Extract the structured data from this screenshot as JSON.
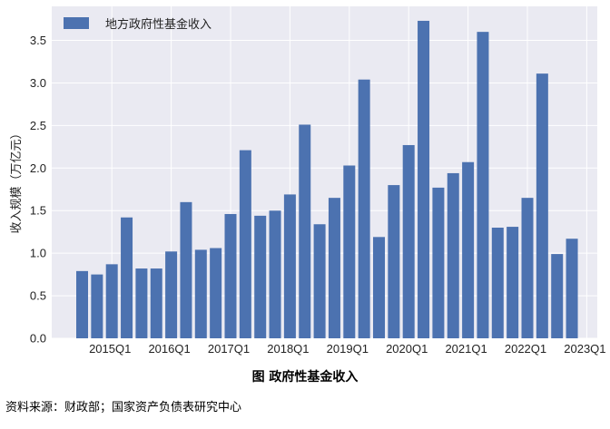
{
  "caption": "图  政府性基金收入",
  "source": "资料来源：财政部；国家资产负债表研究中心",
  "colors": {
    "bar": "#4C72B0",
    "plot_bg": "#EAEAF2",
    "grid": "#ffffff"
  },
  "chart_data": {
    "type": "bar",
    "xlabel": "",
    "ylabel": "收入规模（万亿元）",
    "ylim": [
      0,
      3.9
    ],
    "yticks": [
      "0.0",
      "0.5",
      "1.0",
      "1.5",
      "2.0",
      "2.5",
      "3.0",
      "3.5"
    ],
    "grid": true,
    "legend_position": "top-left",
    "categories": [
      "2015Q1",
      "2015Q2",
      "2015Q3",
      "2015Q4",
      "2016Q1",
      "2016Q2",
      "2016Q3",
      "2016Q4",
      "2017Q1",
      "2017Q2",
      "2017Q3",
      "2017Q4",
      "2018Q1",
      "2018Q2",
      "2018Q3",
      "2018Q4",
      "2019Q1",
      "2019Q2",
      "2019Q3",
      "2019Q4",
      "2020Q1",
      "2020Q2",
      "2020Q3",
      "2020Q4",
      "2021Q1",
      "2021Q2",
      "2021Q3",
      "2021Q4",
      "2022Q1",
      "2022Q2",
      "2022Q3",
      "2022Q4",
      "2023Q1",
      "2023Q2"
    ],
    "xtick_labels": [
      "2015Q1",
      "2016Q1",
      "2017Q1",
      "2018Q1",
      "2019Q1",
      "2020Q1",
      "2021Q1",
      "2022Q1",
      "2023Q1"
    ],
    "series": [
      {
        "name": "地方政府性基金收入",
        "values": [
          0.79,
          0.75,
          0.87,
          1.42,
          0.82,
          0.82,
          1.02,
          1.6,
          1.04,
          1.06,
          1.46,
          2.21,
          1.44,
          1.5,
          1.69,
          2.51,
          1.34,
          1.65,
          2.03,
          3.04,
          1.19,
          1.8,
          2.27,
          3.73,
          1.77,
          1.94,
          2.07,
          3.6,
          1.3,
          1.31,
          1.65,
          3.11,
          0.99,
          1.17
        ]
      }
    ]
  }
}
